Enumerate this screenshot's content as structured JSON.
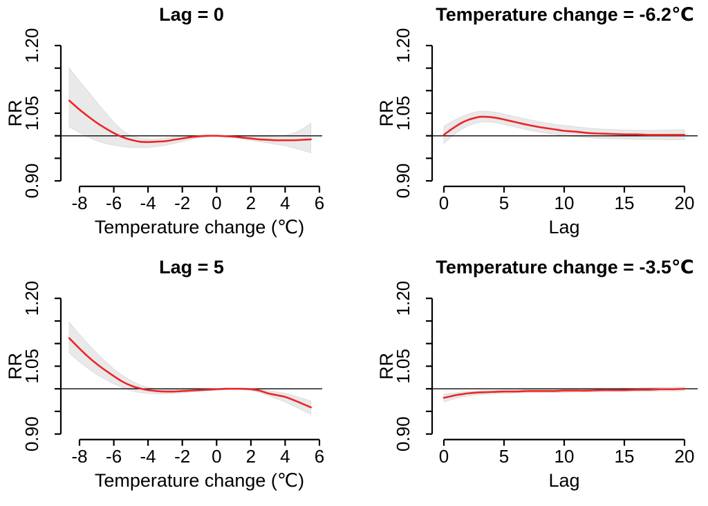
{
  "figure": {
    "background": "#ffffff",
    "colors": {
      "curve_red": "#ee2424",
      "ci_band": "#e9e9e9",
      "ci_band_border": "#dddddd",
      "axis": "#000000",
      "reference_line": "#1a1a1a"
    }
  },
  "chart_data": [
    {
      "id": "lag-0",
      "type": "line",
      "side": "temp",
      "title": "Lag = 0",
      "xlabel": "Temperature change (℃)",
      "ylabel": "RR",
      "x_ticks": [
        -8,
        -6,
        -4,
        -2,
        0,
        2,
        4,
        6
      ],
      "x_tick_labels": [
        "-8",
        "-6",
        "-4",
        "-2",
        "0",
        "2",
        "4",
        "6"
      ],
      "ylim": [
        0.9,
        1.2
      ],
      "y_minor_ticks": [
        0.95,
        1.0,
        1.1,
        1.15
      ],
      "y_labeled_ticks": [
        {
          "v": 0.9,
          "label": "0.90"
        },
        {
          "v": 1.05,
          "label": "1.05"
        },
        {
          "v": 1.2,
          "label": "1.20"
        }
      ],
      "reference_rr": 1.0,
      "series": {
        "x": [
          -8.6,
          -8,
          -7.5,
          -7,
          -6.5,
          -6,
          -5.5,
          -5,
          -4.5,
          -4,
          -3.5,
          -3,
          -2.5,
          -2,
          -1.5,
          -1,
          -0.5,
          0,
          0.5,
          1,
          1.5,
          2,
          2.5,
          3,
          3.5,
          4,
          4.5,
          5,
          5.5
        ],
        "rr": [
          1.078,
          1.058,
          1.043,
          1.029,
          1.017,
          1.006,
          0.997,
          0.991,
          0.987,
          0.986,
          0.987,
          0.988,
          0.991,
          0.994,
          0.997,
          0.999,
          1.0,
          1.0,
          0.999,
          0.998,
          0.996,
          0.994,
          0.992,
          0.991,
          0.99,
          0.99,
          0.99,
          0.991,
          0.992
        ],
        "ci_upper": [
          1.15,
          1.121,
          1.098,
          1.075,
          1.052,
          1.03,
          1.012,
          1.001,
          0.995,
          0.993,
          0.993,
          0.995,
          0.997,
          0.999,
          1.0,
          1.001,
          1.001,
          1.001,
          1.0,
          1.0,
          0.999,
          0.998,
          0.998,
          0.998,
          0.999,
          1.001,
          1.006,
          1.015,
          1.028
        ],
        "ci_lower": [
          1.02,
          1.007,
          0.997,
          0.989,
          0.983,
          0.979,
          0.976,
          0.974,
          0.974,
          0.974,
          0.976,
          0.979,
          0.983,
          0.987,
          0.992,
          0.996,
          0.998,
          0.999,
          0.998,
          0.996,
          0.993,
          0.99,
          0.987,
          0.984,
          0.981,
          0.978,
          0.973,
          0.968,
          0.962
        ]
      }
    },
    {
      "id": "temp-minus-6-2",
      "type": "line",
      "side": "lag",
      "title": "Temperature change = -6.2℃",
      "xlabel": "Lag",
      "ylabel": "RR",
      "x_ticks": [
        0,
        5,
        10,
        15,
        20
      ],
      "x_tick_labels": [
        "0",
        "5",
        "10",
        "15",
        "20"
      ],
      "ylim": [
        0.9,
        1.2
      ],
      "y_minor_ticks": [
        0.95,
        1.0,
        1.1,
        1.15
      ],
      "y_labeled_ticks": [
        {
          "v": 0.9,
          "label": "0.90"
        },
        {
          "v": 1.05,
          "label": "1.05"
        },
        {
          "v": 1.2,
          "label": "1.20"
        }
      ],
      "reference_rr": 1.0,
      "series": {
        "x": [
          0,
          0.5,
          1,
          1.5,
          2,
          2.5,
          3,
          3.5,
          4,
          4.5,
          5,
          6,
          7,
          8,
          9,
          10,
          11,
          12,
          13,
          14,
          15,
          16,
          17,
          18,
          19,
          20
        ],
        "rr": [
          1.002,
          1.012,
          1.021,
          1.029,
          1.035,
          1.039,
          1.042,
          1.042,
          1.041,
          1.039,
          1.036,
          1.03,
          1.024,
          1.019,
          1.015,
          1.011,
          1.009,
          1.006,
          1.005,
          1.004,
          1.003,
          1.003,
          1.002,
          1.002,
          1.002,
          1.002
        ],
        "ci_upper": [
          1.021,
          1.029,
          1.036,
          1.043,
          1.048,
          1.052,
          1.054,
          1.054,
          1.053,
          1.051,
          1.048,
          1.042,
          1.036,
          1.031,
          1.026,
          1.023,
          1.02,
          1.017,
          1.015,
          1.014,
          1.013,
          1.012,
          1.012,
          1.012,
          1.013,
          1.013
        ],
        "ci_lower": [
          0.983,
          0.995,
          1.006,
          1.015,
          1.022,
          1.027,
          1.03,
          1.031,
          1.03,
          1.028,
          1.025,
          1.019,
          1.013,
          1.008,
          1.004,
          1.0,
          0.998,
          0.996,
          0.994,
          0.993,
          0.993,
          0.992,
          0.992,
          0.992,
          0.991,
          0.991
        ]
      }
    },
    {
      "id": "lag-5",
      "type": "line",
      "side": "temp",
      "title": "Lag = 5",
      "xlabel": "Temperature change (℃)",
      "ylabel": "RR",
      "x_ticks": [
        -8,
        -6,
        -4,
        -2,
        0,
        2,
        4,
        6
      ],
      "x_tick_labels": [
        "-8",
        "-6",
        "-4",
        "-2",
        "0",
        "2",
        "4",
        "6"
      ],
      "ylim": [
        0.9,
        1.2
      ],
      "y_minor_ticks": [
        0.95,
        1.0,
        1.1,
        1.15
      ],
      "y_labeled_ticks": [
        {
          "v": 0.9,
          "label": "0.90"
        },
        {
          "v": 1.05,
          "label": "1.05"
        },
        {
          "v": 1.2,
          "label": "1.20"
        }
      ],
      "reference_rr": 1.0,
      "series": {
        "x": [
          -8.6,
          -8,
          -7.5,
          -7,
          -6.5,
          -6,
          -5.5,
          -5,
          -4.5,
          -4,
          -3.5,
          -3,
          -2.5,
          -2,
          -1.5,
          -1,
          -0.5,
          0,
          0.5,
          1,
          1.5,
          2,
          2.5,
          3,
          3.5,
          4,
          4.5,
          5,
          5.5
        ],
        "rr": [
          1.112,
          1.089,
          1.071,
          1.055,
          1.041,
          1.028,
          1.016,
          1.007,
          1.001,
          0.997,
          0.995,
          0.994,
          0.994,
          0.995,
          0.996,
          0.997,
          0.998,
          0.999,
          1.0,
          1.0,
          1.0,
          0.999,
          0.996,
          0.99,
          0.986,
          0.982,
          0.975,
          0.967,
          0.959
        ],
        "ci_upper": [
          1.147,
          1.12,
          1.099,
          1.079,
          1.061,
          1.044,
          1.03,
          1.018,
          1.009,
          1.003,
          1.0,
          0.998,
          0.998,
          0.998,
          0.999,
          0.999,
          1.0,
          1.001,
          1.001,
          1.001,
          1.001,
          1.001,
          0.999,
          0.996,
          0.993,
          0.99,
          0.985,
          0.979,
          0.973
        ],
        "ci_lower": [
          1.079,
          1.06,
          1.045,
          1.032,
          1.021,
          1.011,
          1.003,
          0.996,
          0.992,
          0.99,
          0.989,
          0.989,
          0.99,
          0.991,
          0.993,
          0.994,
          0.996,
          0.997,
          0.998,
          0.999,
          0.998,
          0.996,
          0.992,
          0.985,
          0.978,
          0.971,
          0.962,
          0.953,
          0.944
        ]
      }
    },
    {
      "id": "temp-minus-3-5",
      "type": "line",
      "side": "lag",
      "title": "Temperature change = -3.5℃",
      "xlabel": "Lag",
      "ylabel": "RR",
      "x_ticks": [
        0,
        5,
        10,
        15,
        20
      ],
      "x_tick_labels": [
        "0",
        "5",
        "10",
        "15",
        "20"
      ],
      "ylim": [
        0.9,
        1.2
      ],
      "y_minor_ticks": [
        0.95,
        1.0,
        1.1,
        1.15
      ],
      "y_labeled_ticks": [
        {
          "v": 0.9,
          "label": "0.90"
        },
        {
          "v": 1.05,
          "label": "1.05"
        },
        {
          "v": 1.2,
          "label": "1.20"
        }
      ],
      "reference_rr": 1.0,
      "series": {
        "x": [
          0,
          0.5,
          1,
          1.5,
          2,
          2.5,
          3,
          4,
          5,
          6,
          7,
          8,
          9,
          10,
          11,
          12,
          13,
          14,
          15,
          16,
          17,
          18,
          19,
          20
        ],
        "rr": [
          0.98,
          0.983,
          0.986,
          0.988,
          0.99,
          0.991,
          0.992,
          0.993,
          0.994,
          0.994,
          0.995,
          0.995,
          0.995,
          0.996,
          0.996,
          0.996,
          0.997,
          0.997,
          0.997,
          0.998,
          0.998,
          0.999,
          0.999,
          1.0
        ],
        "ci_upper": [
          0.988,
          0.99,
          0.991,
          0.993,
          0.994,
          0.995,
          0.996,
          0.996,
          0.997,
          0.997,
          0.998,
          0.998,
          0.998,
          0.999,
          0.999,
          0.999,
          1.0,
          1.0,
          1.001,
          1.001,
          1.002,
          1.003,
          1.003,
          1.004
        ],
        "ci_lower": [
          0.971,
          0.975,
          0.979,
          0.982,
          0.984,
          0.986,
          0.987,
          0.989,
          0.99,
          0.991,
          0.991,
          0.992,
          0.992,
          0.992,
          0.993,
          0.993,
          0.993,
          0.994,
          0.994,
          0.994,
          0.994,
          0.995,
          0.995,
          0.996
        ]
      }
    }
  ]
}
